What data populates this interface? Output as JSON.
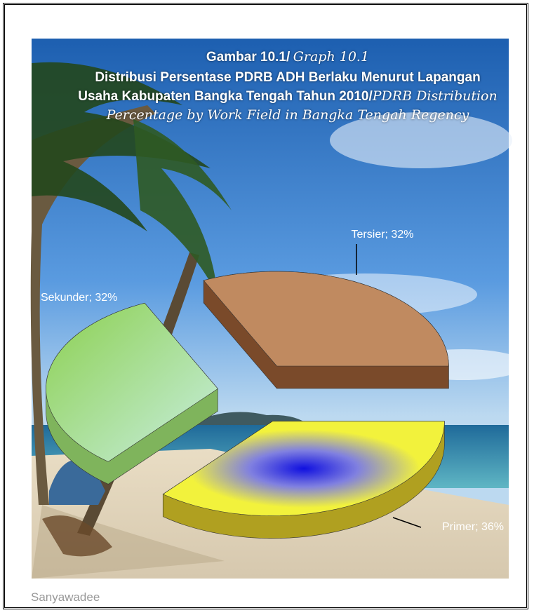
{
  "chart_data": {
    "type": "pie3d",
    "title": "Gambar 10.1/",
    "title_en": "Graph 10.1",
    "subtitle": "Distribusi Persentase PDRB ADH Berlaku Menurut Lapangan Usaha Kabupaten Bangka Tengah Tahun 2010/",
    "subtitle_en": "PDRB Distribution Percentage  by Work Field in Bangka Tengah Regency",
    "values": [
      36,
      32,
      32
    ],
    "value_labels": [
      "Primer; 36%",
      "Sekunder; 32%",
      "Tersier; 32%"
    ],
    "colors": [
      "#f2f23c",
      "#a6da7c",
      "#c08a60"
    ],
    "side_colors": [
      "#b0a020",
      "#7fb45c",
      "#7a4a2a"
    ],
    "credit": "Sanyawadee"
  }
}
